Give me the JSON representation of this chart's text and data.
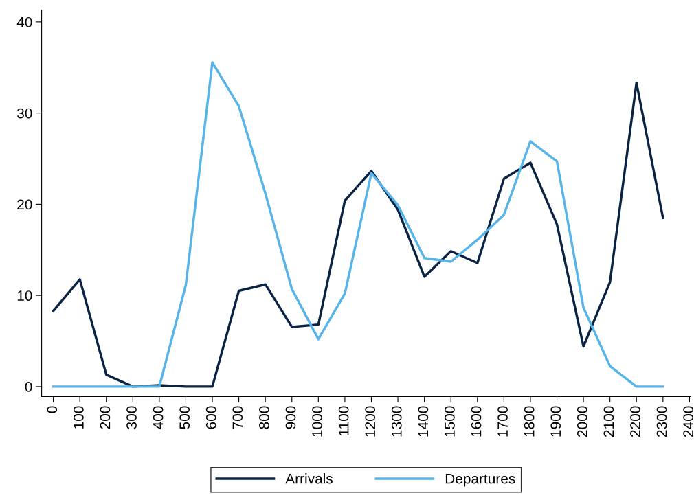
{
  "chart_data": {
    "type": "line",
    "x": [
      0,
      100,
      200,
      300,
      400,
      500,
      600,
      700,
      800,
      900,
      1000,
      1100,
      1200,
      1300,
      1400,
      1500,
      1600,
      1700,
      1800,
      1900,
      2000,
      2100,
      2200,
      2300
    ],
    "series": [
      {
        "name": "Arrivals",
        "color": "#0b2343",
        "values": [
          8.3,
          11.75,
          1.3,
          0,
          0.15,
          0,
          0,
          10.5,
          11.2,
          6.55,
          6.8,
          20.4,
          23.65,
          19.4,
          12.05,
          14.85,
          13.55,
          22.8,
          24.55,
          17.8,
          4.4,
          11.45,
          33.3,
          18.5
        ]
      },
      {
        "name": "Departures",
        "color": "#56b4e9",
        "values": [
          0,
          0,
          0,
          0,
          0,
          11.15,
          35.55,
          30.75,
          21.2,
          10.7,
          5.2,
          10.2,
          23.4,
          19.9,
          14.1,
          13.7,
          16.1,
          18.85,
          26.9,
          24.7,
          8.65,
          2.25,
          0,
          0
        ]
      }
    ],
    "xlim": [
      -44,
      2404
    ],
    "ylim": [
      -1.1,
      41.3
    ],
    "xticks": [
      0,
      100,
      200,
      300,
      400,
      500,
      600,
      700,
      800,
      900,
      1000,
      1100,
      1200,
      1300,
      1400,
      1500,
      1600,
      1700,
      1800,
      1900,
      2000,
      2100,
      2200,
      2300,
      2400
    ],
    "yticks": [
      0,
      10,
      20,
      30,
      40
    ],
    "grid": false,
    "legend": "bottom",
    "marker": "none",
    "line_style": "solid"
  }
}
